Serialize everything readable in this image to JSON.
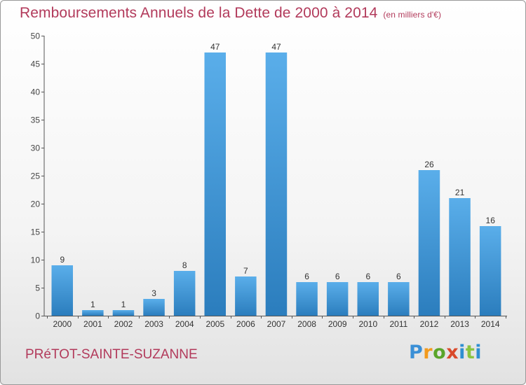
{
  "chart_data": {
    "type": "bar",
    "title": "Remboursements Annuels de la Dette de 2000 à 2014",
    "unit_note": "(en milliers d'€)",
    "categories": [
      "2000",
      "2001",
      "2002",
      "2003",
      "2004",
      "2005",
      "2006",
      "2007",
      "2008",
      "2009",
      "2010",
      "2011",
      "2012",
      "2013",
      "2014"
    ],
    "values": [
      9,
      1,
      1,
      3,
      8,
      47,
      7,
      47,
      6,
      6,
      6,
      6,
      26,
      21,
      16
    ],
    "data_labels": [
      "9",
      "1",
      "1",
      "3",
      "8",
      "47",
      "7",
      "47",
      "6",
      "6",
      "6",
      "6",
      "26",
      "21",
      "16"
    ],
    "ylim": [
      0,
      50
    ],
    "yticks": [
      0,
      5,
      10,
      15,
      20,
      25,
      30,
      35,
      40,
      45,
      50
    ],
    "grid": false,
    "bar_color_light": "#5aaeea",
    "bar_color_dark": "#2b7dbd"
  },
  "commune": "PRéTOT-SAINTE-SUZANNE",
  "logo": {
    "letters": [
      "P",
      "r",
      "o",
      "x",
      "i",
      "t",
      "i"
    ],
    "colors": [
      "#3a8fd6",
      "#f29a1d",
      "#5aa52a",
      "#d94a2b",
      "#2f8fd1",
      "#8ac43f",
      "#2f8fd1"
    ]
  }
}
